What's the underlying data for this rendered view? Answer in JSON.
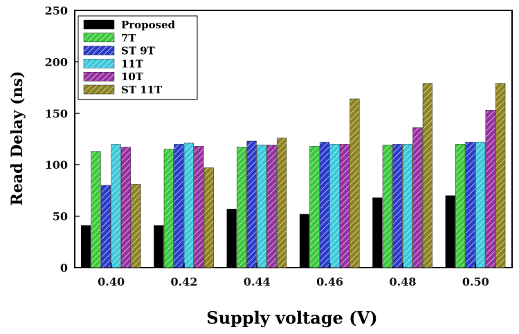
{
  "chart_data": {
    "type": "bar",
    "title": "",
    "xlabel": "Supply voltage (V)",
    "ylabel": "Read Delay (ns)",
    "ylim": [
      0,
      250
    ],
    "yticks": [
      0,
      50,
      100,
      150,
      200,
      250
    ],
    "categories": [
      "0.40",
      "0.42",
      "0.44",
      "0.46",
      "0.48",
      "0.50"
    ],
    "legend_position": "top-left",
    "series": [
      {
        "name": "Proposed",
        "color": "#000000",
        "pattern": "solid",
        "values": [
          41,
          41,
          57,
          52,
          68,
          70
        ]
      },
      {
        "name": "7T",
        "color": "#3cc83c",
        "pattern": "hatch",
        "values": [
          113,
          115,
          117,
          118,
          119,
          120
        ]
      },
      {
        "name": "ST 9T",
        "color": "#2a3cc8",
        "pattern": "hatch",
        "values": [
          80,
          120,
          123,
          122,
          120,
          122
        ]
      },
      {
        "name": "11T",
        "color": "#3cc8dc",
        "pattern": "hatch",
        "values": [
          120,
          121,
          119,
          120,
          120,
          122
        ]
      },
      {
        "name": "10T",
        "color": "#9630a0",
        "pattern": "hatch",
        "values": [
          117,
          118,
          119,
          120,
          136,
          153
        ]
      },
      {
        "name": "ST 11T",
        "color": "#8c8220",
        "pattern": "hatch",
        "values": [
          81,
          97,
          126,
          164,
          179,
          179
        ]
      }
    ]
  }
}
